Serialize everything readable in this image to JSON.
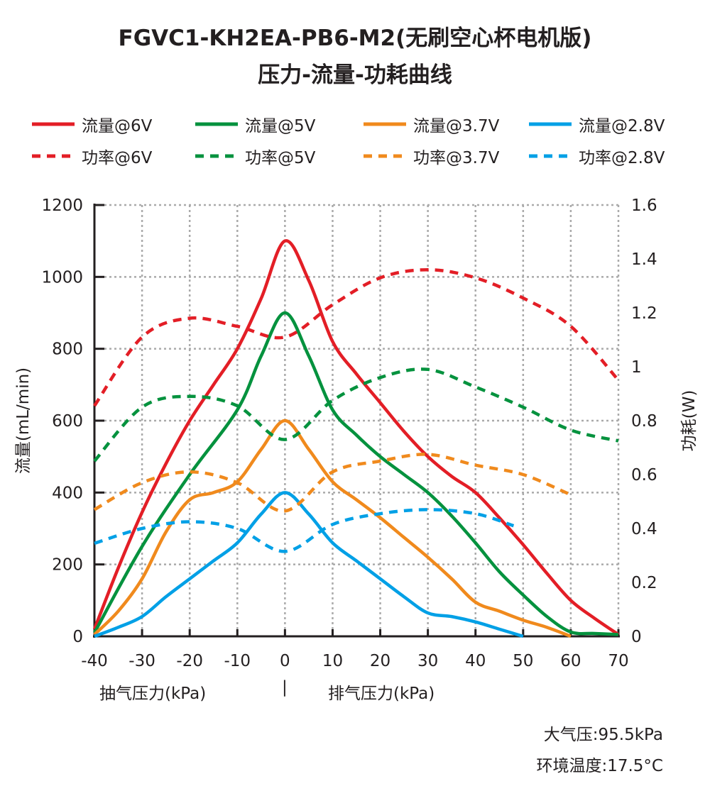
{
  "title_line1": "FGVC1-KH2EA-PB6-M2(无刷空心杯电机版)",
  "title_line2": "压力-流量-功耗曲线",
  "notes": {
    "pressure": "大气压:95.5kPa",
    "temperature": "环境温度:17.5°C"
  },
  "chart_data": {
    "type": "line",
    "title": "FGVC1-KH2EA-PB6-M2(无刷空心杯电机版) 压力-流量-功耗曲线",
    "xlabel_left": "抽气压力(kPa)",
    "xlabel_separator": "|",
    "xlabel_right": "排气压力(kPa)",
    "ylabel": "流量(mL/min)",
    "y2label": "功耗(W)",
    "xlim": [
      -40,
      70
    ],
    "ylim": [
      0,
      1200
    ],
    "y2lim": [
      0,
      1.6
    ],
    "xticks": [
      "-40",
      "-30",
      "-20",
      "-10",
      "0",
      "10",
      "20",
      "30",
      "40",
      "50",
      "60",
      "70"
    ],
    "yticks": [
      "0",
      "200",
      "400",
      "600",
      "800",
      "1000",
      "1200"
    ],
    "y2ticks": [
      "0",
      "0.2",
      "0.4",
      "0.6",
      "0.8",
      "1",
      "1.2",
      "1.4",
      "1.6"
    ],
    "grid": true,
    "legend_position": "top",
    "series": [
      {
        "name": "流量@6V",
        "axis": "left",
        "style": "solid",
        "color": "#e31e26",
        "x": [
          -40,
          -35,
          -30,
          -25,
          -20,
          -15,
          -10,
          -5,
          0,
          5,
          10,
          15,
          20,
          25,
          30,
          35,
          40,
          45,
          50,
          55,
          60,
          65,
          70
        ],
        "y": [
          20,
          190,
          345,
          480,
          600,
          700,
          800,
          940,
          1100,
          990,
          820,
          730,
          650,
          570,
          500,
          445,
          400,
          330,
          255,
          175,
          100,
          50,
          5
        ]
      },
      {
        "name": "流量@5V",
        "axis": "left",
        "style": "solid",
        "color": "#05923e",
        "x": [
          -40,
          -30,
          -20,
          -10,
          -5,
          0,
          5,
          10,
          15,
          20,
          25,
          30,
          35,
          40,
          45,
          50,
          55,
          60,
          65,
          70
        ],
        "y": [
          10,
          250,
          450,
          630,
          780,
          900,
          780,
          630,
          560,
          500,
          450,
          400,
          335,
          260,
          180,
          115,
          55,
          12,
          8,
          5
        ]
      },
      {
        "name": "流量@3.7V",
        "axis": "left",
        "style": "solid",
        "color": "#f08a1d",
        "x": [
          -40,
          -35,
          -30,
          -25,
          -20,
          -15,
          -10,
          -5,
          0,
          5,
          10,
          15,
          20,
          25,
          30,
          35,
          40,
          45,
          50,
          55,
          60
        ],
        "y": [
          5,
          70,
          160,
          290,
          380,
          400,
          430,
          520,
          600,
          520,
          430,
          380,
          330,
          275,
          220,
          160,
          95,
          70,
          45,
          25,
          0
        ]
      },
      {
        "name": "流量@2.8V",
        "axis": "left",
        "style": "solid",
        "color": "#00a0e6",
        "x": [
          -40,
          -35,
          -30,
          -25,
          -20,
          -15,
          -10,
          -5,
          0,
          5,
          10,
          15,
          20,
          25,
          30,
          35,
          40,
          45,
          50
        ],
        "y": [
          0,
          25,
          55,
          110,
          160,
          210,
          260,
          340,
          400,
          340,
          260,
          210,
          160,
          110,
          65,
          55,
          40,
          20,
          0
        ]
      },
      {
        "name": "功率@6V",
        "axis": "right",
        "style": "dashed",
        "color": "#e31e26",
        "x": [
          -40,
          -30,
          -20,
          -10,
          0,
          10,
          20,
          30,
          40,
          50,
          60,
          70
        ],
        "y": [
          0.855,
          1.11,
          1.18,
          1.15,
          1.11,
          1.23,
          1.33,
          1.36,
          1.33,
          1.255,
          1.15,
          0.95
        ]
      },
      {
        "name": "功率@5V",
        "axis": "right",
        "style": "dashed",
        "color": "#05923e",
        "x": [
          -40,
          -30,
          -20,
          -10,
          0,
          10,
          20,
          30,
          40,
          50,
          60,
          70
        ],
        "y": [
          0.65,
          0.85,
          0.89,
          0.855,
          0.73,
          0.875,
          0.96,
          0.99,
          0.925,
          0.85,
          0.765,
          0.725
        ]
      },
      {
        "name": "功率@3.7V",
        "axis": "right",
        "style": "dashed",
        "color": "#f08a1d",
        "x": [
          -40,
          -30,
          -20,
          -10,
          0,
          10,
          20,
          30,
          40,
          50,
          60
        ],
        "y": [
          0.47,
          0.57,
          0.61,
          0.57,
          0.465,
          0.61,
          0.65,
          0.675,
          0.635,
          0.6,
          0.525
        ]
      },
      {
        "name": "功率@2.8V",
        "axis": "right",
        "style": "dashed",
        "color": "#00a0e6",
        "x": [
          -40,
          -30,
          -20,
          -10,
          0,
          10,
          20,
          30,
          40,
          48
        ],
        "y": [
          0.345,
          0.4,
          0.425,
          0.4,
          0.315,
          0.415,
          0.455,
          0.47,
          0.455,
          0.41
        ]
      }
    ]
  }
}
